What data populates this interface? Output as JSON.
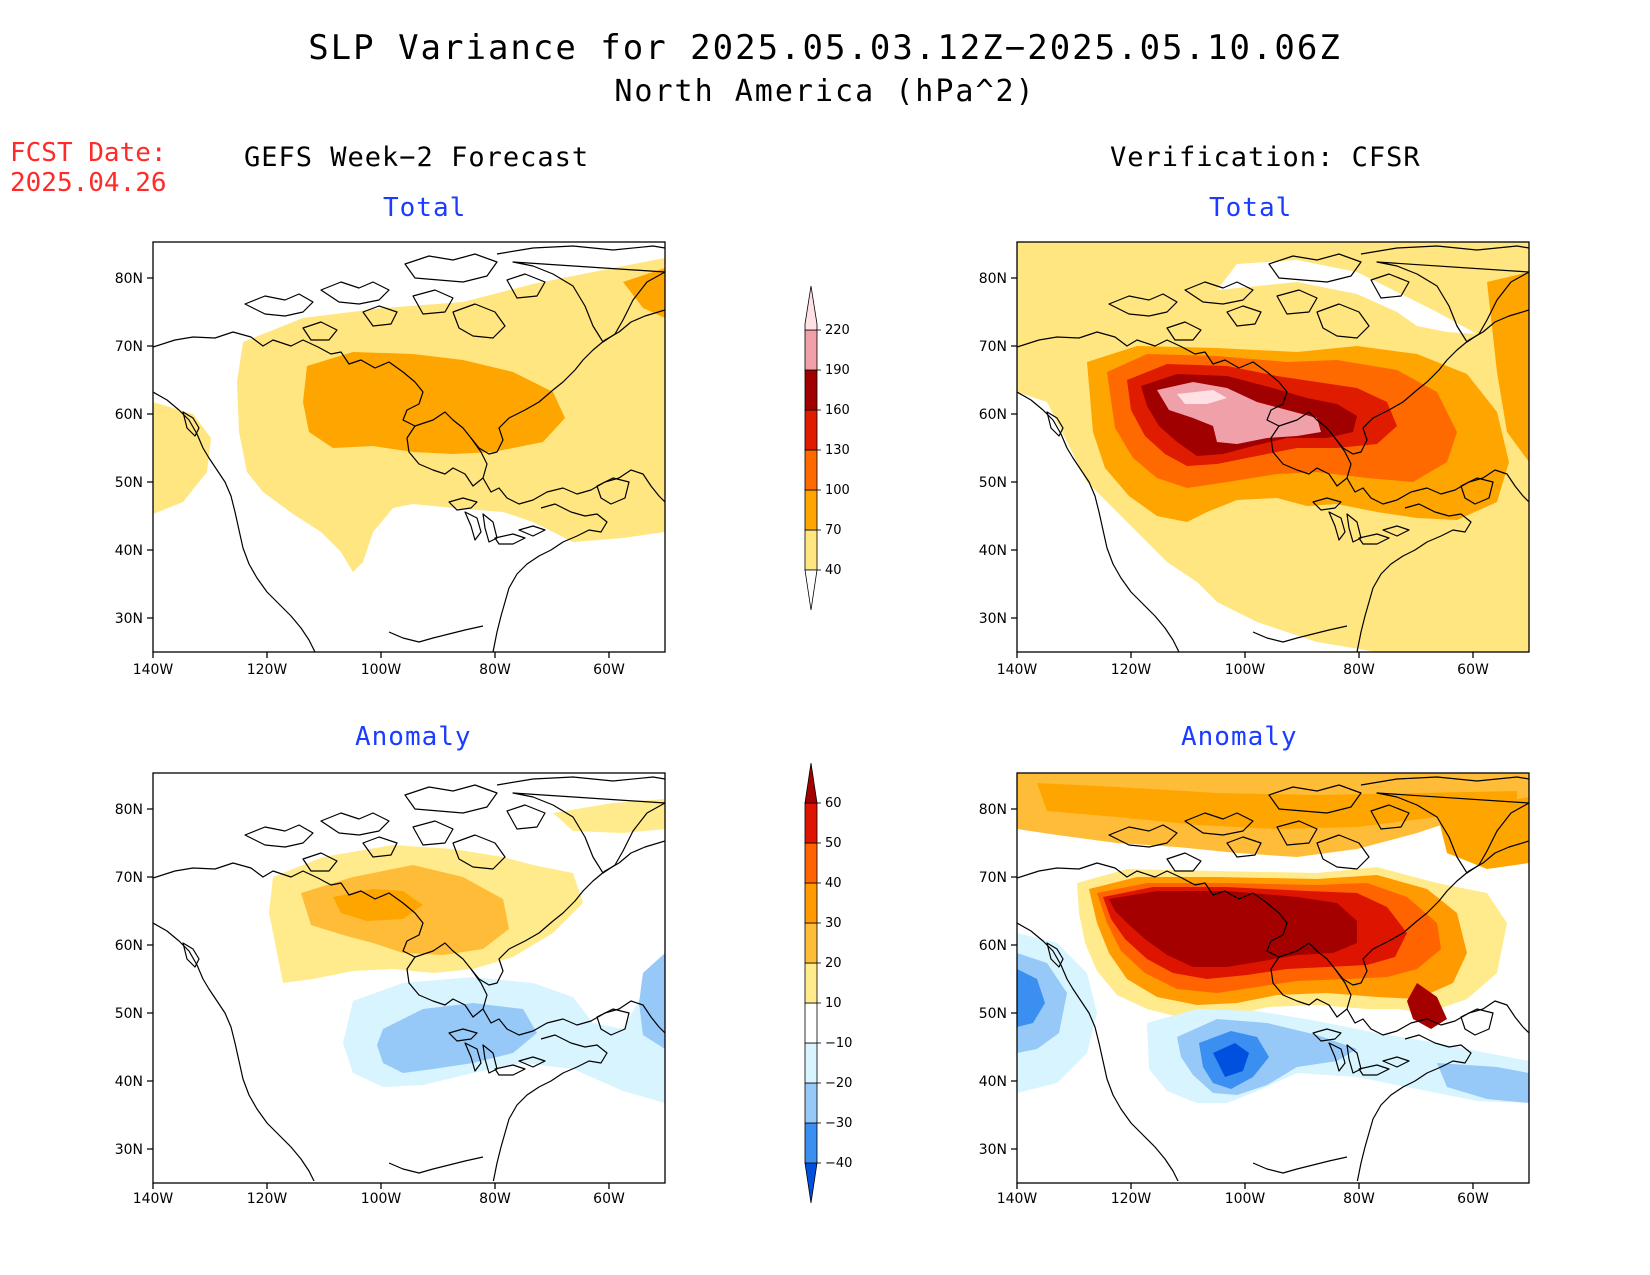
{
  "title": "SLP Variance for 2025.05.03.12Z−2025.05.10.06Z",
  "subtitle": "North America (hPa^2)",
  "fcst_date_label": "FCST Date:",
  "fcst_date_value": "2025.04.26",
  "left_column_title": "GEFS Week−2 Forecast",
  "right_column_title": "Verification: CFSR",
  "panels": {
    "gefs_total": {
      "title": "Total"
    },
    "cfsr_total": {
      "title": "Total"
    },
    "gefs_anomaly": {
      "title": "Anomaly"
    },
    "cfsr_anomaly": {
      "title": "Anomaly"
    }
  },
  "axes": {
    "lon_labels": [
      "140W",
      "120W",
      "100W",
      "80W",
      "60W"
    ],
    "lat_labels": [
      "80N",
      "70N",
      "60N",
      "50N",
      "40N",
      "30N"
    ]
  },
  "total_colorbar": {
    "levels": [
      "40",
      "70",
      "100",
      "130",
      "160",
      "190",
      "220"
    ],
    "colors": [
      "#ffe680",
      "#ffa500",
      "#ff6a00",
      "#e01c00",
      "#a00000",
      "#f0a0a8",
      "#ffe0e4"
    ]
  },
  "anomaly_colorbar": {
    "levels": [
      "−40",
      "−30",
      "−20",
      "−10",
      "10",
      "20",
      "30",
      "40",
      "50",
      "60"
    ],
    "colors": [
      "#0050e0",
      "#3a8ff0",
      "#96c8f8",
      "#d8f4ff",
      "#ffffff",
      "#ffeb8c",
      "#ffbc38",
      "#ff9a00",
      "#ff6400",
      "#dc1400",
      "#a50000"
    ]
  },
  "colors": {
    "title_text": "#000000",
    "fcst_date": "#ff2a2a",
    "panel_title": "#1a3cff"
  }
}
